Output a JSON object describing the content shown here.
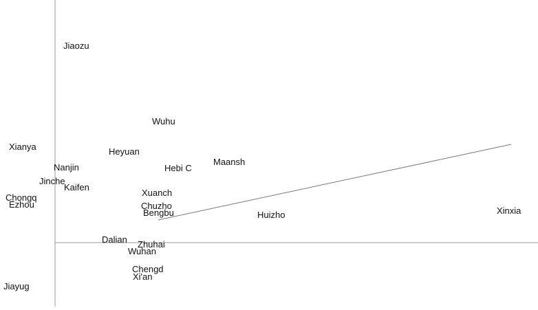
{
  "chart_data": {
    "type": "scatter",
    "categories": [
      "Jiaozu",
      "Wuhu",
      "Xianya",
      "Heyuan",
      "Nanjin",
      "Hebi C",
      "Maansh",
      "Jinche",
      "Xuanch",
      "Huizho",
      "Xinxia",
      "Chengd",
      "Xi'an",
      "Zhuhai",
      "Wuhan",
      "Jiayug",
      "Chongq",
      "Ezhou",
      "Kaifen",
      "Chuzho",
      "Bengbu",
      "Dalian"
    ],
    "x": [
      0.12,
      1.41,
      -0.67,
      0.78,
      -0.02,
      1.59,
      2.3,
      -0.23,
      1.26,
      2.94,
      6.42,
      1.12,
      1.13,
      1.2,
      1.06,
      -0.75,
      -0.72,
      -0.67,
      0.13,
      1.25,
      1.28,
      0.68
    ],
    "values": [
      2.82,
      1.72,
      1.35,
      1.28,
      1.05,
      1.04,
      1.13,
      0.85,
      0.68,
      0.36,
      0.42,
      -0.43,
      -0.54,
      -0.07,
      -0.17,
      -0.68,
      0.61,
      0.51,
      0.76,
      0.49,
      0.39,
      0.0
    ],
    "color": "#111111",
    "arrow": {
      "x": [
        1.5,
        6.63
      ],
      "y": [
        0.33,
        1.43
      ],
      "color": "#777777"
    },
    "xlim": [
      -0.8,
      7.02
    ],
    "ylim": [
      -0.93,
      3.53
    ]
  }
}
